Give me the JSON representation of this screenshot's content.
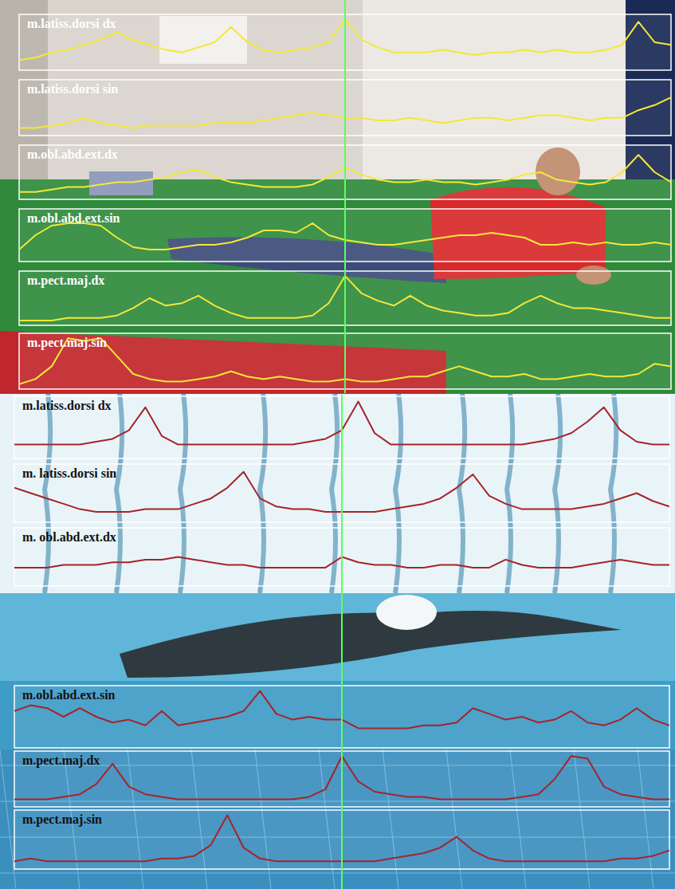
{
  "chart_data": [
    {
      "type": "line",
      "tick_labels": false,
      "x": [
        0,
        1,
        2,
        3,
        4,
        5,
        6,
        7,
        8,
        9,
        10,
        11,
        12,
        13,
        14,
        15,
        16,
        17,
        18,
        19,
        20,
        21,
        22,
        23,
        24,
        25,
        26,
        27,
        28,
        29,
        30,
        31,
        32,
        33,
        34,
        35,
        36,
        37,
        38,
        39,
        40
      ],
      "xlim": [
        0,
        40
      ],
      "ylim": [
        0,
        1
      ],
      "cursor": 20,
      "series": [
        {
          "name": "m.latiss.dorsi dx",
          "color": "#f3e83a",
          "values": [
            0.15,
            0.2,
            0.3,
            0.35,
            0.45,
            0.55,
            0.7,
            0.55,
            0.45,
            0.35,
            0.3,
            0.4,
            0.5,
            0.8,
            0.5,
            0.35,
            0.3,
            0.35,
            0.4,
            0.5,
            0.95,
            0.55,
            0.4,
            0.3,
            0.3,
            0.3,
            0.35,
            0.3,
            0.25,
            0.3,
            0.3,
            0.35,
            0.3,
            0.35,
            0.3,
            0.3,
            0.35,
            0.45,
            0.9,
            0.5,
            0.45
          ]
        },
        {
          "name": "m.latiss.dorsi sin",
          "color": "#f3e83a",
          "values": [
            0.1,
            0.1,
            0.15,
            0.2,
            0.3,
            0.2,
            0.15,
            0.1,
            0.15,
            0.15,
            0.15,
            0.15,
            0.2,
            0.2,
            0.2,
            0.25,
            0.3,
            0.35,
            0.4,
            0.35,
            0.3,
            0.3,
            0.25,
            0.25,
            0.3,
            0.25,
            0.2,
            0.25,
            0.3,
            0.3,
            0.25,
            0.3,
            0.35,
            0.35,
            0.3,
            0.25,
            0.3,
            0.3,
            0.45,
            0.55,
            0.7
          ]
        },
        {
          "name": "m.obl.abd.ext.dx",
          "color": "#f3e83a",
          "values": [
            0.1,
            0.1,
            0.15,
            0.2,
            0.2,
            0.25,
            0.3,
            0.3,
            0.35,
            0.4,
            0.5,
            0.55,
            0.4,
            0.3,
            0.25,
            0.2,
            0.2,
            0.2,
            0.25,
            0.4,
            0.6,
            0.45,
            0.35,
            0.3,
            0.3,
            0.35,
            0.3,
            0.3,
            0.25,
            0.3,
            0.35,
            0.45,
            0.5,
            0.35,
            0.3,
            0.25,
            0.3,
            0.5,
            0.85,
            0.5,
            0.3
          ]
        },
        {
          "name": "m.obl.abd.ext.sin",
          "color": "#f3e83a",
          "values": [
            0.2,
            0.5,
            0.7,
            0.75,
            0.75,
            0.7,
            0.45,
            0.25,
            0.2,
            0.2,
            0.25,
            0.3,
            0.3,
            0.35,
            0.45,
            0.6,
            0.6,
            0.55,
            0.75,
            0.5,
            0.4,
            0.35,
            0.3,
            0.3,
            0.35,
            0.4,
            0.45,
            0.5,
            0.5,
            0.55,
            0.5,
            0.45,
            0.3,
            0.3,
            0.35,
            0.3,
            0.35,
            0.3,
            0.3,
            0.35,
            0.3
          ]
        },
        {
          "name": "m.pect.maj.dx",
          "color": "#f3e83a",
          "values": [
            0.05,
            0.05,
            0.05,
            0.1,
            0.1,
            0.1,
            0.15,
            0.3,
            0.5,
            0.35,
            0.4,
            0.55,
            0.35,
            0.2,
            0.1,
            0.1,
            0.1,
            0.1,
            0.15,
            0.4,
            0.95,
            0.6,
            0.45,
            0.35,
            0.55,
            0.35,
            0.25,
            0.2,
            0.15,
            0.15,
            0.2,
            0.4,
            0.55,
            0.4,
            0.3,
            0.3,
            0.25,
            0.2,
            0.15,
            0.1,
            0.1
          ]
        },
        {
          "name": "m.pect.maj.sin",
          "color": "#f3e83a",
          "values": [
            0.05,
            0.15,
            0.4,
            0.95,
            0.9,
            0.95,
            0.6,
            0.25,
            0.15,
            0.1,
            0.1,
            0.15,
            0.2,
            0.3,
            0.2,
            0.15,
            0.2,
            0.15,
            0.1,
            0.1,
            0.15,
            0.1,
            0.1,
            0.15,
            0.2,
            0.2,
            0.3,
            0.4,
            0.3,
            0.2,
            0.2,
            0.25,
            0.15,
            0.15,
            0.2,
            0.25,
            0.2,
            0.2,
            0.25,
            0.45,
            0.4
          ]
        }
      ]
    },
    {
      "type": "line",
      "tick_labels": false,
      "x": [
        0,
        1,
        2,
        3,
        4,
        5,
        6,
        7,
        8,
        9,
        10,
        11,
        12,
        13,
        14,
        15,
        16,
        17,
        18,
        19,
        20,
        21,
        22,
        23,
        24,
        25,
        26,
        27,
        28,
        29,
        30,
        31,
        32,
        33,
        34,
        35,
        36,
        37,
        38,
        39,
        40
      ],
      "xlim": [
        0,
        40
      ],
      "ylim": [
        0,
        1
      ],
      "cursor": 20,
      "series": [
        {
          "name": "m.latiss.dorsi dx",
          "color": "#a5242a",
          "values": [
            0.2,
            0.2,
            0.2,
            0.2,
            0.2,
            0.25,
            0.3,
            0.45,
            0.85,
            0.35,
            0.2,
            0.2,
            0.2,
            0.2,
            0.2,
            0.2,
            0.2,
            0.2,
            0.25,
            0.3,
            0.45,
            0.95,
            0.4,
            0.2,
            0.2,
            0.2,
            0.2,
            0.2,
            0.2,
            0.2,
            0.2,
            0.2,
            0.25,
            0.3,
            0.4,
            0.6,
            0.85,
            0.45,
            0.25,
            0.2,
            0.2
          ]
        },
        {
          "name": "m. latiss.dorsi sin",
          "color": "#a5242a",
          "values": [
            0.6,
            0.5,
            0.4,
            0.3,
            0.2,
            0.15,
            0.15,
            0.15,
            0.2,
            0.2,
            0.2,
            0.3,
            0.4,
            0.6,
            0.9,
            0.4,
            0.25,
            0.2,
            0.2,
            0.15,
            0.15,
            0.15,
            0.15,
            0.2,
            0.25,
            0.3,
            0.4,
            0.6,
            0.85,
            0.45,
            0.3,
            0.2,
            0.2,
            0.2,
            0.2,
            0.25,
            0.3,
            0.4,
            0.5,
            0.35,
            0.25
          ]
        },
        {
          "name": "m. obl.abd.ext.dx",
          "color": "#a5242a",
          "values": [
            0.3,
            0.3,
            0.3,
            0.35,
            0.35,
            0.35,
            0.4,
            0.4,
            0.45,
            0.45,
            0.5,
            0.45,
            0.4,
            0.35,
            0.35,
            0.3,
            0.3,
            0.3,
            0.3,
            0.3,
            0.5,
            0.4,
            0.35,
            0.35,
            0.3,
            0.3,
            0.35,
            0.35,
            0.3,
            0.3,
            0.45,
            0.35,
            0.3,
            0.3,
            0.3,
            0.35,
            0.4,
            0.45,
            0.4,
            0.35,
            0.35
          ]
        },
        {
          "name": "m.obl.abd.ext.sin",
          "color": "#a5242a",
          "values": [
            0.6,
            0.7,
            0.65,
            0.5,
            0.65,
            0.5,
            0.4,
            0.45,
            0.35,
            0.6,
            0.35,
            0.4,
            0.45,
            0.5,
            0.6,
            0.95,
            0.55,
            0.45,
            0.5,
            0.45,
            0.45,
            0.3,
            0.3,
            0.3,
            0.3,
            0.35,
            0.35,
            0.4,
            0.65,
            0.55,
            0.45,
            0.5,
            0.4,
            0.45,
            0.6,
            0.4,
            0.35,
            0.45,
            0.65,
            0.45,
            0.35
          ]
        },
        {
          "name": "m.pect.maj.dx",
          "color": "#a5242a",
          "values": [
            0.1,
            0.1,
            0.1,
            0.15,
            0.2,
            0.4,
            0.8,
            0.35,
            0.2,
            0.15,
            0.1,
            0.1,
            0.1,
            0.1,
            0.1,
            0.1,
            0.1,
            0.1,
            0.15,
            0.3,
            0.95,
            0.45,
            0.25,
            0.2,
            0.15,
            0.15,
            0.1,
            0.1,
            0.1,
            0.1,
            0.1,
            0.15,
            0.2,
            0.5,
            0.95,
            0.9,
            0.35,
            0.2,
            0.15,
            0.1,
            0.1
          ]
        },
        {
          "name": "m.pect.maj.sin",
          "color": "#a5242a",
          "values": [
            0.1,
            0.15,
            0.1,
            0.1,
            0.1,
            0.1,
            0.1,
            0.1,
            0.1,
            0.15,
            0.15,
            0.2,
            0.4,
            0.95,
            0.35,
            0.15,
            0.1,
            0.1,
            0.1,
            0.1,
            0.1,
            0.1,
            0.1,
            0.15,
            0.2,
            0.25,
            0.35,
            0.55,
            0.3,
            0.15,
            0.1,
            0.1,
            0.1,
            0.1,
            0.1,
            0.1,
            0.1,
            0.15,
            0.15,
            0.2,
            0.3
          ]
        }
      ]
    }
  ]
}
